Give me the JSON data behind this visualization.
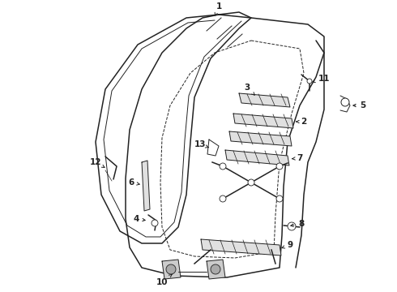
{
  "background_color": "#ffffff",
  "line_color": "#222222",
  "label_color": "#000000",
  "fig_width": 4.9,
  "fig_height": 3.6,
  "dpi": 100,
  "font_size": 7.5,
  "font_weight": "bold",
  "lw_main": 1.1,
  "lw_thin": 0.7,
  "lw_detail": 0.5
}
